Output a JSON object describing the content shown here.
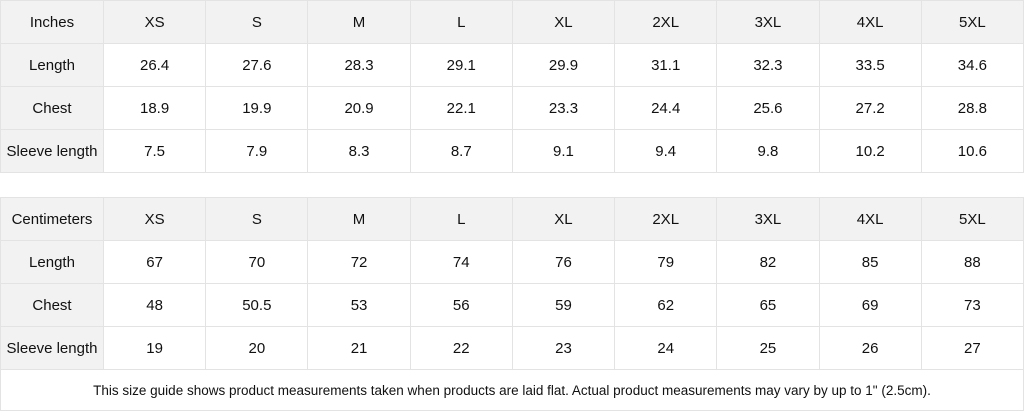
{
  "tables": [
    {
      "unit": "Inches",
      "sizes": [
        "XS",
        "S",
        "M",
        "L",
        "XL",
        "2XL",
        "3XL",
        "4XL",
        "5XL"
      ],
      "rows": [
        {
          "label": "Length",
          "values": [
            "26.4",
            "27.6",
            "28.3",
            "29.1",
            "29.9",
            "31.1",
            "32.3",
            "33.5",
            "34.6"
          ]
        },
        {
          "label": "Chest",
          "values": [
            "18.9",
            "19.9",
            "20.9",
            "22.1",
            "23.3",
            "24.4",
            "25.6",
            "27.2",
            "28.8"
          ]
        },
        {
          "label": "Sleeve length",
          "values": [
            "7.5",
            "7.9",
            "8.3",
            "8.7",
            "9.1",
            "9.4",
            "9.8",
            "10.2",
            "10.6"
          ]
        }
      ]
    },
    {
      "unit": "Centimeters",
      "sizes": [
        "XS",
        "S",
        "M",
        "L",
        "XL",
        "2XL",
        "3XL",
        "4XL",
        "5XL"
      ],
      "rows": [
        {
          "label": "Length",
          "values": [
            "67",
            "70",
            "72",
            "74",
            "76",
            "79",
            "82",
            "85",
            "88"
          ]
        },
        {
          "label": "Chest",
          "values": [
            "48",
            "50.5",
            "53",
            "56",
            "59",
            "62",
            "65",
            "69",
            "73"
          ]
        },
        {
          "label": "Sleeve length",
          "values": [
            "19",
            "20",
            "21",
            "22",
            "23",
            "24",
            "25",
            "26",
            "27"
          ]
        }
      ]
    }
  ],
  "footnote": "This size guide shows product measurements taken when products are laid flat.  Actual product measurements may vary by up to 1\" (2.5cm).",
  "colors": {
    "header_bg": "#f2f2f2",
    "border": "#e3e3e3"
  }
}
